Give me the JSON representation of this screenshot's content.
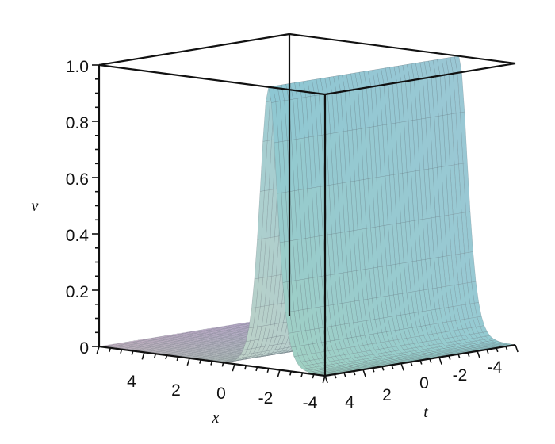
{
  "chart_data": {
    "type": "surface3d",
    "title": "",
    "xlabel": "x",
    "tlabel": "t",
    "zlabel": "v",
    "x_range": [
      -5,
      5
    ],
    "t_range": [
      -5,
      5
    ],
    "z_range": [
      0,
      1
    ],
    "z_ticks": [
      "0",
      "0.2",
      "0.4",
      "0.6",
      "0.8",
      "1.0"
    ],
    "x_ticks": [
      "4",
      "2",
      "0",
      "-2",
      "-4"
    ],
    "t_ticks": [
      "4",
      "2",
      "0",
      "-2",
      "-4"
    ],
    "grid": false,
    "surface": {
      "description_values": "kink/soliton profile v(x,t): peak value 1.0 along a ridge, decaying to 0 away from it",
      "peak": 1.0,
      "base": 0.0
    }
  }
}
